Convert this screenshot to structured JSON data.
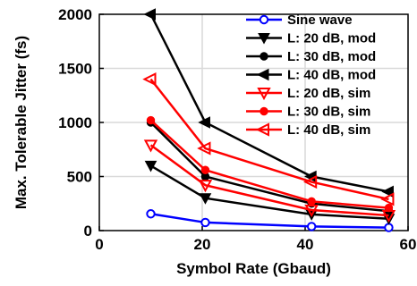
{
  "chart_data": {
    "type": "line",
    "xlabel": "Symbol Rate (Gbaud)",
    "ylabel": "Max. Tolerable Jitter (fs)",
    "xlim": [
      0,
      60
    ],
    "ylim": [
      0,
      2000
    ],
    "xticks": [
      0,
      20,
      40,
      60
    ],
    "yticks": [
      0,
      500,
      1000,
      1500,
      2000
    ],
    "grid": true,
    "legend_position": "top-right",
    "series": [
      {
        "name": "Sine wave",
        "color": "#0000ff",
        "marker": "circle-open",
        "x": [
          10,
          20.6,
          41.25,
          56.25
        ],
        "y": [
          155,
          75,
          38,
          28
        ]
      },
      {
        "name": "L: 20 dB, mod",
        "color": "#000000",
        "marker": "triangle-down",
        "x": [
          10,
          20.6,
          41.25,
          56.25
        ],
        "y": [
          600,
          300,
          150,
          110
        ]
      },
      {
        "name": "L: 30 dB, mod",
        "color": "#000000",
        "marker": "circle",
        "x": [
          10,
          20.6,
          41.25,
          56.25
        ],
        "y": [
          1000,
          500,
          250,
          180
        ]
      },
      {
        "name": "L: 40 dB, mod",
        "color": "#000000",
        "marker": "triangle-left",
        "x": [
          10,
          20.6,
          41.25,
          56.25
        ],
        "y": [
          2000,
          1000,
          500,
          360
        ]
      },
      {
        "name": "L: 20 dB, sim",
        "color": "#ff0000",
        "marker": "triangle-down",
        "x": [
          10,
          20.6,
          41.25,
          56.25
        ],
        "y": [
          790,
          420,
          190,
          140
        ]
      },
      {
        "name": "L: 30 dB, sim",
        "color": "#ff0000",
        "marker": "circle",
        "x": [
          10,
          20.6,
          41.25,
          56.25
        ],
        "y": [
          1020,
          560,
          270,
          210
        ]
      },
      {
        "name": "L: 40 dB, sim",
        "color": "#ff0000",
        "marker": "triangle-left",
        "x": [
          10,
          20.6,
          41.25,
          56.25
        ],
        "y": [
          1400,
          760,
          450,
          290
        ]
      }
    ]
  }
}
